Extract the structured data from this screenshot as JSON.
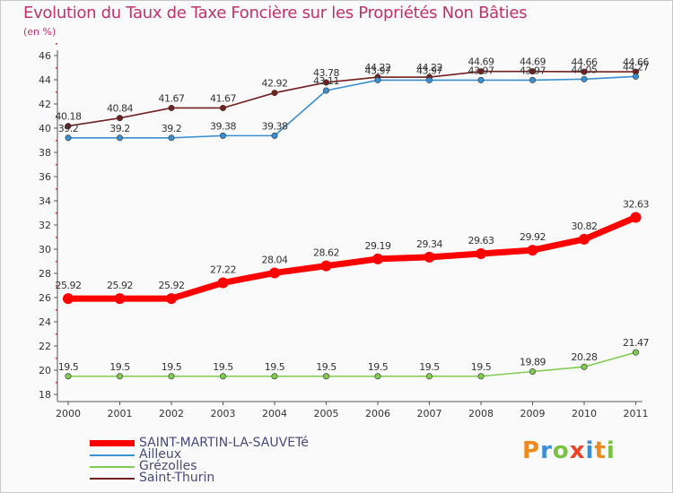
{
  "title": "Evolution du Taux de Taxe Foncière sur les Propriétés Non Bâties",
  "unit_label": "(en %)",
  "logo": {
    "text": "Proxiti",
    "colors": [
      "#f08a1c",
      "#3a8fd6",
      "#7cc242",
      "#e8452c",
      "#3a8fd6",
      "#f08a1c",
      "#7cc242"
    ]
  },
  "chart_data": {
    "type": "line",
    "title": "Evolution du Taux de Taxe Foncière sur les Propriétés Non Bâties",
    "ylabel": "(en %)",
    "xlabel": "",
    "ylim": [
      18,
      46
    ],
    "yticks": [
      18,
      20,
      22,
      24,
      26,
      28,
      30,
      32,
      34,
      36,
      38,
      40,
      42,
      44,
      46
    ],
    "categories": [
      "2000",
      "2001",
      "2002",
      "2003",
      "2004",
      "2005",
      "2006",
      "2007",
      "2008",
      "2009",
      "2010",
      "2011"
    ],
    "series": [
      {
        "name": "Saint-Thurin",
        "color": "#722020",
        "values": [
          40.18,
          40.84,
          41.67,
          41.67,
          42.92,
          43.78,
          44.22,
          44.22,
          44.69,
          44.69,
          44.66,
          44.66
        ],
        "labels": [
          "40.18",
          "40.84",
          "41.67",
          "41.67",
          "42.92",
          "43.78",
          "44.22",
          "44.22",
          "44.69",
          "44.69",
          "44.66",
          "44.66"
        ]
      },
      {
        "name": "Ailleux",
        "color": "#3a8fd0",
        "values": [
          39.2,
          39.2,
          39.2,
          39.38,
          39.38,
          43.11,
          43.97,
          43.97,
          43.97,
          43.97,
          44.05,
          44.27
        ],
        "labels": [
          "39.2",
          "39.2",
          "39.2",
          "39.38",
          "39.38",
          "43.11",
          "43.97",
          "43.97",
          "43.97",
          "43.97",
          "44.05",
          "44.27"
        ]
      },
      {
        "name": "SAINT-MARTIN-LA-SAUVETé",
        "color": "#ff0000",
        "values": [
          25.92,
          25.92,
          25.92,
          27.22,
          28.04,
          28.62,
          29.19,
          29.34,
          29.63,
          29.92,
          30.82,
          32.63
        ],
        "labels": [
          "25.92",
          "25.92",
          "25.92",
          "27.22",
          "28.04",
          "28.62",
          "29.19",
          "29.34",
          "29.63",
          "29.92",
          "30.82",
          "32.63"
        ]
      },
      {
        "name": "Grézolles",
        "color": "#80cc50",
        "values": [
          19.5,
          19.5,
          19.5,
          19.5,
          19.5,
          19.5,
          19.5,
          19.5,
          19.5,
          19.89,
          20.28,
          21.47
        ],
        "labels": [
          "19.5",
          "19.5",
          "19.5",
          "19.5",
          "19.5",
          "19.5",
          "19.5",
          "19.5",
          "19.5",
          "19.89",
          "20.28",
          "21.47"
        ]
      }
    ],
    "legend": [
      {
        "name": "SAINT-MARTIN-LA-SAUVETé",
        "color": "#ff0000",
        "style": "thick"
      },
      {
        "name": "Ailleux",
        "color": "#3a8fd0",
        "style": "thin"
      },
      {
        "name": "Grézolles",
        "color": "#80cc50",
        "style": "thin"
      },
      {
        "name": "Saint-Thurin",
        "color": "#722020",
        "style": "thin"
      }
    ],
    "legend_position": "bottom-left",
    "grid": false
  }
}
